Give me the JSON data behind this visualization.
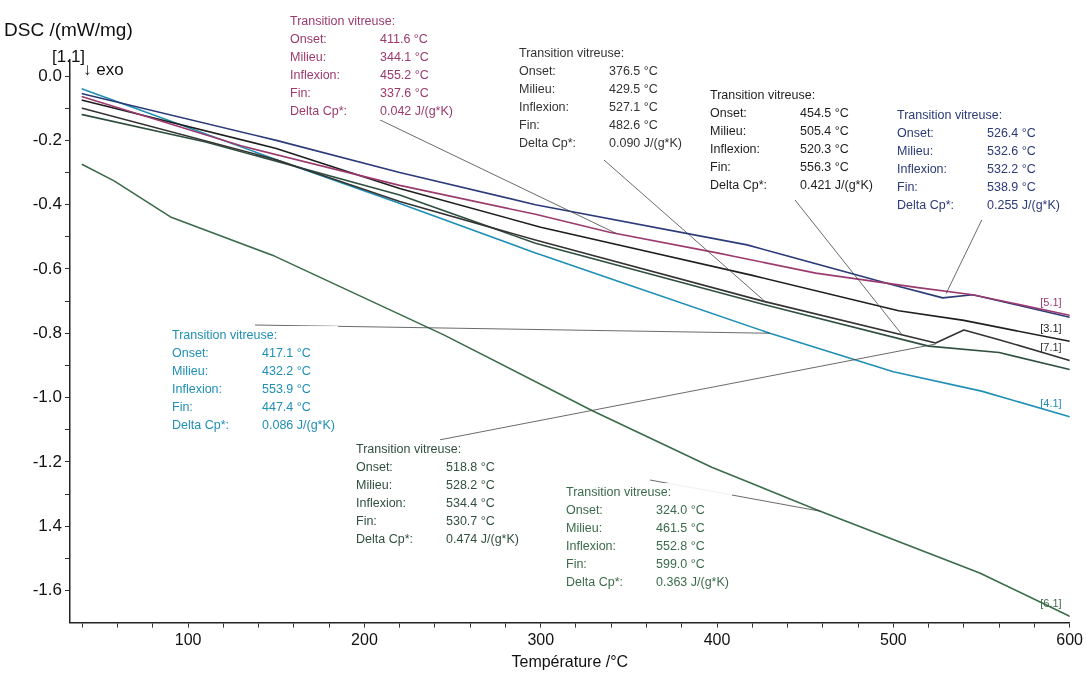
{
  "chart_data": {
    "type": "line",
    "xlabel": "Température /°C",
    "ylabel": "DSC /(mW/mg)",
    "xlim": [
      33,
      600
    ],
    "ylim": [
      -1.7,
      0.05
    ],
    "xticks": [
      {
        "value": 40,
        "label": null
      },
      {
        "value": 60,
        "label": null
      },
      {
        "value": 80,
        "label": null
      },
      100,
      {
        "value": 120,
        "label": null
      },
      {
        "value": 140,
        "label": null
      },
      {
        "value": 160,
        "label": null
      },
      {
        "value": 180,
        "label": null
      },
      200,
      {
        "value": 220,
        "label": null
      },
      {
        "value": 240,
        "label": null
      },
      {
        "value": 260,
        "label": null
      },
      {
        "value": 280,
        "label": null
      },
      300,
      {
        "value": 320,
        "label": null
      },
      {
        "value": 340,
        "label": null
      },
      {
        "value": 360,
        "label": null
      },
      {
        "value": 380,
        "label": null
      },
      400,
      {
        "value": 420,
        "label": null
      },
      {
        "value": 440,
        "label": null
      },
      {
        "value": 460,
        "label": null
      },
      {
        "value": 480,
        "label": null
      },
      500,
      {
        "value": 520,
        "label": null
      },
      {
        "value": 540,
        "label": null
      },
      {
        "value": 560,
        "label": null
      },
      {
        "value": 580,
        "label": null
      },
      600
    ],
    "yticks": [
      {
        "value": -1.6,
        "label": "-1.6"
      },
      {
        "value": -1.5,
        "label": null
      },
      {
        "value": -1.4,
        "label": "1.4"
      },
      {
        "value": -1.3,
        "label": null
      },
      {
        "value": -1.2,
        "label": "-1.2"
      },
      {
        "value": -1.1,
        "label": null
      },
      {
        "value": -1.0,
        "label": "-1.0"
      },
      {
        "value": -0.9,
        "label": null
      },
      {
        "value": -0.8,
        "label": "-0.8"
      },
      {
        "value": -0.7,
        "label": null
      },
      {
        "value": -0.6,
        "label": "-0.6"
      },
      {
        "value": -0.5,
        "label": null
      },
      {
        "value": -0.4,
        "label": "-0.4"
      },
      {
        "value": -0.3,
        "label": null
      },
      {
        "value": -0.2,
        "label": "-0.2"
      },
      {
        "value": -0.1,
        "label": null
      },
      {
        "value": 0,
        "label": "0.0"
      }
    ],
    "grid": false,
    "legend": false,
    "marker": "none",
    "line_style": "solid",
    "series": [
      {
        "name": "[5.1]",
        "color": "#9b3a6e",
        "x": [
          40,
          130,
          220,
          297,
          339,
          400,
          456,
          514,
          545,
          600
        ],
        "values": [
          -0.064,
          -0.217,
          -0.34,
          -0.43,
          -0.486,
          -0.55,
          -0.613,
          -0.658,
          -0.68,
          -0.744
        ]
      },
      {
        "color": "#2b3a78",
        "x": [
          40,
          150,
          220,
          297,
          417,
          500,
          528,
          545,
          600
        ],
        "values": [
          -0.055,
          -0.2,
          -0.3,
          -0.4,
          -0.525,
          -0.65,
          -0.69,
          -0.68,
          -0.75
        ]
      },
      {
        "name": "[3.1]",
        "color": "#1e1e1e",
        "x": [
          40,
          150,
          220,
          300,
          420,
          503,
          540,
          600
        ],
        "values": [
          -0.075,
          -0.225,
          -0.35,
          -0.47,
          -0.62,
          -0.73,
          -0.76,
          -0.825
        ]
      },
      {
        "name": "[7.1]",
        "color": "#333333",
        "x": [
          40,
          150,
          220,
          297,
          426,
          524,
          540,
          560,
          600
        ],
        "values": [
          -0.1,
          -0.26,
          -0.39,
          -0.51,
          -0.7,
          -0.83,
          -0.79,
          -0.82,
          -0.885
        ]
      },
      {
        "color": "#2f4f3f",
        "x": [
          40,
          110,
          220,
          297,
          426,
          520,
          560,
          600
        ],
        "values": [
          -0.12,
          -0.205,
          -0.37,
          -0.52,
          -0.71,
          -0.84,
          -0.86,
          -0.913
        ]
      },
      {
        "name": "[4.1]",
        "color": "#1f8fb5",
        "x": [
          40,
          70,
          150,
          217,
          297,
          350,
          430,
          500,
          550,
          600
        ],
        "values": [
          -0.04,
          -0.1,
          -0.26,
          -0.39,
          -0.55,
          -0.65,
          -0.8,
          -0.92,
          -0.98,
          -1.06
        ]
      },
      {
        "name": "[6.1]",
        "color": "#3a6b4a",
        "x": [
          40,
          58,
          90,
          149,
          245,
          329,
          397,
          456,
          549,
          600
        ],
        "values": [
          -0.275,
          -0.326,
          -0.438,
          -0.56,
          -0.805,
          -1.04,
          -1.217,
          -1.348,
          -1.546,
          -1.68
        ]
      }
    ],
    "annotations": [
      {
        "text": "Transition vitreuse:\nOnset:\t411.6 °C\nMilieu:\t344.1 °C\nInflexion:\t455.2 °C\nFin:\t337.6 °C\nDelta Cp*:\t0.042 J/(g*K)",
        "x": 343,
        "y": -0.49
      },
      {
        "text": "Transition vitreuse:\nOnset:\t376.5 °C\nMilieu:\t429.5 °C\nInflexion:\t527.1 °C\nFin:\t482.6 °C\nDelta Cp*:\t0.090 J/(g*K)",
        "x": 428,
        "y": -0.705
      },
      {
        "text": "Transition vitreuse:\nOnset:\t454.5 °C\nMilieu:\t505.4 °C\nInflexion:\t520.3 °C\nFin:\t556.3 °C\nDelta Cp*:\t0.421 J/(g*K)",
        "x": 505,
        "y": -0.805
      },
      {
        "text": "Transition vitreuse:\nOnset:\t526.4 °C\nMilieu:\t532.6 °C\nInflexion:\t532.2 °C\nFin:\t538.9 °C\nDelta Cp*:\t0.255 J/(g*K)",
        "x": 530,
        "y": -0.677
      },
      {
        "text": "Transition vitreuse:\nOnset:\t417.1 °C\nMilieu:\t432.2 °C\nInflexion:\t553.9 °C\nFin:\t447.4 °C\nDelta Cp*:\t0.086 J/(g*K)",
        "x": 430,
        "y": -0.8
      },
      {
        "text": "Transition vitreuse:\nOnset:\t518.8 °C\nMilieu:\t528.2 °C\nInflexion:\t534.4 °C\nFin:\t530.7 °C\nDelta Cp*:\t0.474 J/(g*K)",
        "x": 524,
        "y": -0.834
      },
      {
        "text": "Transition vitreuse:\nOnset:\t324.0 °C\nMilieu:\t461.5 °C\nInflexion:\t552.8 °C\nFin:\t599.0 °C\nDelta Cp*:\t0.363 J/(g*K)",
        "x": 459,
        "y": -1.354
      },
      "[1.1]",
      "↓ exo"
    ]
  }
}
